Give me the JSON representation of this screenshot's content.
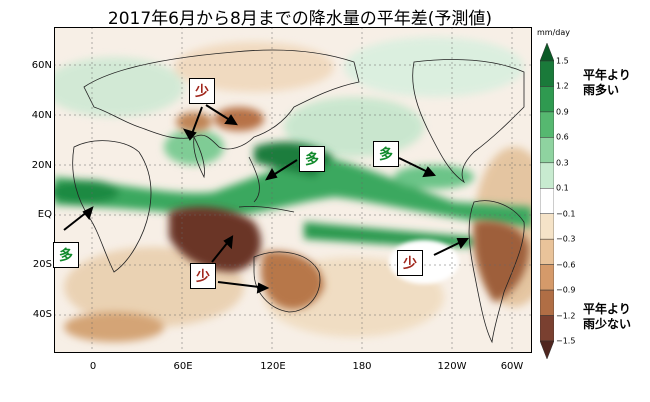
{
  "title": "2017年6月から8月までの降水量の平年差(予測値)",
  "lat_labels": [
    "60N",
    "40N",
    "20N",
    "EQ",
    "20S",
    "40S"
  ],
  "lon_labels": [
    "0",
    "60E",
    "120E",
    "180",
    "120W",
    "60W"
  ],
  "colorbar": {
    "unit": "mm/day",
    "ticks": [
      "1.5",
      "1.2",
      "0.9",
      "0.6",
      "0.3",
      "0.1",
      "−0.1",
      "−0.3",
      "−0.6",
      "−0.9",
      "−1.2",
      "−1.5"
    ],
    "colors": [
      "#0a5a26",
      "#1a7a3a",
      "#2f9a50",
      "#56b870",
      "#8fd3a0",
      "#c8ebd0",
      "#ffffff",
      "#f5e3c8",
      "#e9c39a",
      "#d59a6a",
      "#b06e45",
      "#7a4030",
      "#4f2620"
    ],
    "label_wet": "平年より\n雨多い",
    "label_dry": "平年より\n雨少ない"
  },
  "callouts": [
    {
      "text": "少",
      "color": "red"
    },
    {
      "text": "多",
      "color": "green"
    },
    {
      "text": "多",
      "color": "green"
    },
    {
      "text": "多",
      "color": "green"
    },
    {
      "text": "少",
      "color": "red"
    },
    {
      "text": "少",
      "color": "red"
    }
  ]
}
